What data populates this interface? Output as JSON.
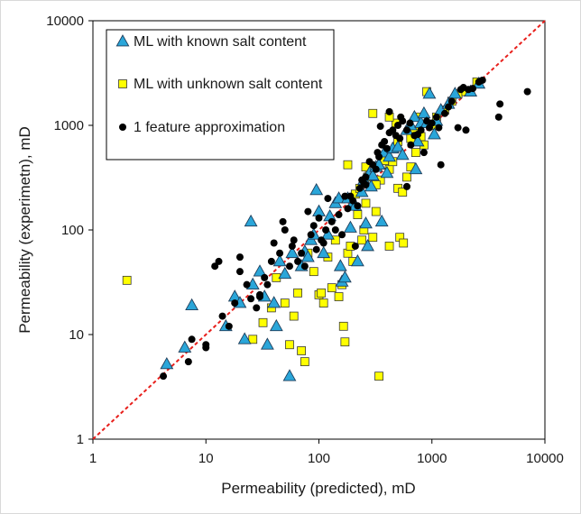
{
  "chart_data": {
    "type": "scatter",
    "xlabel": "Permeability (predicted), mD",
    "ylabel": "Permeability (experimetn), mD",
    "xscale": "log",
    "yscale": "log",
    "xlim": [
      1,
      10000
    ],
    "ylim": [
      1,
      10000
    ],
    "xticks": [
      "1",
      "10",
      "100",
      "1000",
      "10000"
    ],
    "yticks": [
      "1",
      "10",
      "100",
      "1000",
      "10000"
    ],
    "grid": false,
    "legend_position": "top-left",
    "reference_line": {
      "style": "dashed",
      "color": "#e8201c",
      "from": [
        1,
        1
      ],
      "to": [
        10000,
        10000
      ]
    },
    "series": [
      {
        "name": "ML with known salt content",
        "marker": "triangle",
        "color": "#2aa6d9",
        "points": [
          [
            4.5,
            5.2
          ],
          [
            6.5,
            7.5
          ],
          [
            7.5,
            19
          ],
          [
            15,
            12
          ],
          [
            18,
            23
          ],
          [
            20,
            20
          ],
          [
            22,
            9
          ],
          [
            26,
            30
          ],
          [
            30,
            40
          ],
          [
            33,
            23
          ],
          [
            35,
            8
          ],
          [
            40,
            20
          ],
          [
            42,
            12
          ],
          [
            45,
            50
          ],
          [
            50,
            38
          ],
          [
            55,
            4
          ],
          [
            58,
            60
          ],
          [
            70,
            45
          ],
          [
            75,
            62
          ],
          [
            80,
            55
          ],
          [
            85,
            80
          ],
          [
            90,
            90
          ],
          [
            95,
            240
          ],
          [
            100,
            150
          ],
          [
            110,
            60
          ],
          [
            120,
            90
          ],
          [
            125,
            135
          ],
          [
            140,
            180
          ],
          [
            150,
            200
          ],
          [
            155,
            45
          ],
          [
            160,
            32
          ],
          [
            170,
            35
          ],
          [
            180,
            200
          ],
          [
            190,
            105
          ],
          [
            200,
            180
          ],
          [
            210,
            170
          ],
          [
            220,
            50
          ],
          [
            240,
            230
          ],
          [
            250,
            300
          ],
          [
            260,
            115
          ],
          [
            270,
            70
          ],
          [
            280,
            350
          ],
          [
            290,
            260
          ],
          [
            300,
            330
          ],
          [
            320,
            400
          ],
          [
            340,
            420
          ],
          [
            360,
            120
          ],
          [
            380,
            550
          ],
          [
            400,
            350
          ],
          [
            420,
            500
          ],
          [
            450,
            600
          ],
          [
            500,
            620
          ],
          [
            550,
            520
          ],
          [
            600,
            900
          ],
          [
            650,
            1000
          ],
          [
            700,
            1200
          ],
          [
            720,
            380
          ],
          [
            750,
            700
          ],
          [
            800,
            1050
          ],
          [
            850,
            1300
          ],
          [
            900,
            1050
          ],
          [
            950,
            2000
          ],
          [
            1050,
            820
          ],
          [
            1100,
            1100
          ],
          [
            1200,
            1400
          ],
          [
            1400,
            1600
          ],
          [
            1600,
            2000
          ],
          [
            2200,
            2100
          ],
          [
            2600,
            2500
          ],
          [
            25,
            120
          ]
        ]
      },
      {
        "name": "ML with unknown salt content",
        "marker": "square",
        "color": "#ffff00",
        "points": [
          [
            2,
            33
          ],
          [
            26,
            9
          ],
          [
            32,
            13
          ],
          [
            38,
            18
          ],
          [
            42,
            35
          ],
          [
            50,
            20
          ],
          [
            55,
            8
          ],
          [
            60,
            15
          ],
          [
            65,
            25
          ],
          [
            70,
            7
          ],
          [
            75,
            5.5
          ],
          [
            80,
            60
          ],
          [
            90,
            40
          ],
          [
            100,
            24
          ],
          [
            105,
            25
          ],
          [
            110,
            20
          ],
          [
            120,
            55
          ],
          [
            130,
            28
          ],
          [
            140,
            80
          ],
          [
            150,
            23
          ],
          [
            160,
            30
          ],
          [
            165,
            12
          ],
          [
            170,
            8.5
          ],
          [
            180,
            60
          ],
          [
            190,
            70
          ],
          [
            200,
            50
          ],
          [
            210,
            220
          ],
          [
            220,
            140
          ],
          [
            230,
            250
          ],
          [
            240,
            80
          ],
          [
            250,
            100
          ],
          [
            260,
            180
          ],
          [
            270,
            320
          ],
          [
            280,
            350
          ],
          [
            300,
            85
          ],
          [
            320,
            150
          ],
          [
            340,
            4
          ],
          [
            350,
            300
          ],
          [
            380,
            460
          ],
          [
            400,
            560
          ],
          [
            420,
            380
          ],
          [
            450,
            450
          ],
          [
            480,
            1050
          ],
          [
            500,
            700
          ],
          [
            520,
            85
          ],
          [
            560,
            75
          ],
          [
            600,
            320
          ],
          [
            650,
            750
          ],
          [
            700,
            900
          ],
          [
            720,
            550
          ],
          [
            750,
            1200
          ],
          [
            800,
            780
          ],
          [
            850,
            650
          ],
          [
            900,
            2100
          ],
          [
            1000,
            1000
          ],
          [
            1100,
            1200
          ],
          [
            1300,
            1400
          ],
          [
            1500,
            1700
          ],
          [
            1700,
            2000
          ],
          [
            2000,
            2100
          ],
          [
            2500,
            2600
          ],
          [
            300,
            1300
          ],
          [
            420,
            1200
          ],
          [
            500,
            250
          ],
          [
            320,
            270
          ],
          [
            260,
            400
          ],
          [
            180,
            420
          ],
          [
            420,
            70
          ],
          [
            550,
            230
          ],
          [
            650,
            400
          ]
        ]
      },
      {
        "name": "1 feature approximation",
        "marker": "circle",
        "color": "#000000",
        "points": [
          [
            4.2,
            4
          ],
          [
            7,
            5.5
          ],
          [
            7.5,
            9
          ],
          [
            10,
            7.5
          ],
          [
            10,
            8
          ],
          [
            12,
            45
          ],
          [
            13,
            50
          ],
          [
            14,
            15
          ],
          [
            16,
            12
          ],
          [
            18,
            20
          ],
          [
            20,
            40
          ],
          [
            20,
            55
          ],
          [
            23,
            30
          ],
          [
            25,
            22
          ],
          [
            28,
            18
          ],
          [
            30,
            23
          ],
          [
            30,
            24
          ],
          [
            33,
            35
          ],
          [
            35,
            30
          ],
          [
            38,
            50
          ],
          [
            40,
            75
          ],
          [
            45,
            60
          ],
          [
            48,
            120
          ],
          [
            50,
            100
          ],
          [
            55,
            45
          ],
          [
            58,
            70
          ],
          [
            60,
            80
          ],
          [
            65,
            50
          ],
          [
            70,
            60
          ],
          [
            75,
            45
          ],
          [
            80,
            150
          ],
          [
            85,
            90
          ],
          [
            90,
            110
          ],
          [
            95,
            65
          ],
          [
            100,
            130
          ],
          [
            105,
            80
          ],
          [
            110,
            75
          ],
          [
            115,
            100
          ],
          [
            120,
            200
          ],
          [
            130,
            120
          ],
          [
            140,
            100
          ],
          [
            150,
            140
          ],
          [
            160,
            90
          ],
          [
            170,
            210
          ],
          [
            180,
            160
          ],
          [
            190,
            210
          ],
          [
            200,
            190
          ],
          [
            210,
            70
          ],
          [
            220,
            170
          ],
          [
            230,
            250
          ],
          [
            240,
            300
          ],
          [
            250,
            280
          ],
          [
            260,
            320
          ],
          [
            280,
            450
          ],
          [
            300,
            420
          ],
          [
            320,
            380
          ],
          [
            340,
            500
          ],
          [
            360,
            650
          ],
          [
            380,
            700
          ],
          [
            400,
            600
          ],
          [
            420,
            850
          ],
          [
            450,
            900
          ],
          [
            480,
            800
          ],
          [
            500,
            1000
          ],
          [
            520,
            750
          ],
          [
            550,
            1100
          ],
          [
            600,
            260
          ],
          [
            650,
            650
          ],
          [
            700,
            800
          ],
          [
            750,
            820
          ],
          [
            800,
            900
          ],
          [
            850,
            550
          ],
          [
            900,
            1100
          ],
          [
            950,
            950
          ],
          [
            1000,
            1050
          ],
          [
            1100,
            1200
          ],
          [
            1150,
            950
          ],
          [
            1200,
            420
          ],
          [
            1300,
            1300
          ],
          [
            1400,
            1500
          ],
          [
            1500,
            1700
          ],
          [
            1700,
            950
          ],
          [
            1800,
            2200
          ],
          [
            1900,
            2300
          ],
          [
            2000,
            900
          ],
          [
            2100,
            2200
          ],
          [
            2300,
            2250
          ],
          [
            2600,
            2600
          ],
          [
            2800,
            2700
          ],
          [
            3900,
            1200
          ],
          [
            4000,
            1600
          ],
          [
            7000,
            2100
          ],
          [
            350,
            980
          ],
          [
            420,
            1350
          ],
          [
            600,
            900
          ],
          [
            640,
            1050
          ],
          [
            530,
            1200
          ],
          [
            260,
            270
          ],
          [
            330,
            550
          ]
        ]
      }
    ]
  }
}
